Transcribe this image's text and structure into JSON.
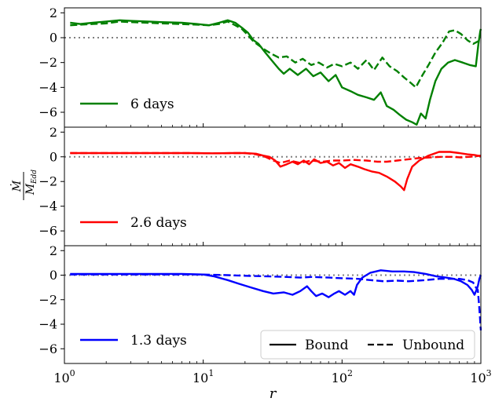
{
  "chart_data": {
    "type": "line",
    "xlabel": "r",
    "ylabel_parts": {
      "numerator": "Ṁ",
      "denominator": "M",
      "denominator_sub": "Edd"
    },
    "xscale": "log",
    "xlim": [
      1,
      1000
    ],
    "x_ticks": [
      {
        "value": 1,
        "base": "10",
        "exp": "0"
      },
      {
        "value": 10,
        "base": "10",
        "exp": "1"
      },
      {
        "value": 100,
        "base": "10",
        "exp": "2"
      },
      {
        "value": 1000,
        "base": "10",
        "exp": "3"
      }
    ],
    "y_ticks": [
      {
        "value": 2,
        "label": "2"
      },
      {
        "value": 0,
        "label": "0"
      },
      {
        "value": -2,
        "label": "−2"
      },
      {
        "value": -4,
        "label": "−4"
      },
      {
        "value": -6,
        "label": "−6"
      }
    ],
    "style_legend": {
      "solid": "Bound",
      "dashed": "Unbound",
      "placement": "lower right of bottom panel"
    },
    "panels": [
      {
        "label": "6 days",
        "color": "#008000",
        "ylim": [
          -7.2,
          2.4
        ],
        "bound": [
          [
            1.1,
            1.2
          ],
          [
            1.3,
            1.1
          ],
          [
            1.6,
            1.2
          ],
          [
            2,
            1.3
          ],
          [
            2.5,
            1.4
          ],
          [
            3,
            1.35
          ],
          [
            4,
            1.3
          ],
          [
            5,
            1.25
          ],
          [
            7,
            1.2
          ],
          [
            9,
            1.1
          ],
          [
            11,
            1.0
          ],
          [
            13,
            1.2
          ],
          [
            15,
            1.4
          ],
          [
            17,
            1.2
          ],
          [
            19,
            0.8
          ],
          [
            21,
            0.4
          ],
          [
            23,
            -0.2
          ],
          [
            25,
            -0.5
          ],
          [
            28,
            -1.2
          ],
          [
            31,
            -1.8
          ],
          [
            35,
            -2.5
          ],
          [
            38,
            -2.9
          ],
          [
            42,
            -2.5
          ],
          [
            48,
            -3.0
          ],
          [
            55,
            -2.5
          ],
          [
            62,
            -3.1
          ],
          [
            70,
            -2.8
          ],
          [
            80,
            -3.5
          ],
          [
            90,
            -3.0
          ],
          [
            100,
            -4.0
          ],
          [
            115,
            -4.3
          ],
          [
            130,
            -4.6
          ],
          [
            150,
            -4.8
          ],
          [
            170,
            -5.0
          ],
          [
            190,
            -4.4
          ],
          [
            210,
            -5.5
          ],
          [
            235,
            -5.8
          ],
          [
            260,
            -6.2
          ],
          [
            290,
            -6.6
          ],
          [
            320,
            -6.8
          ],
          [
            345,
            -7.0
          ],
          [
            370,
            -6.1
          ],
          [
            400,
            -6.5
          ],
          [
            430,
            -5.0
          ],
          [
            470,
            -3.5
          ],
          [
            520,
            -2.5
          ],
          [
            580,
            -2.0
          ],
          [
            650,
            -1.8
          ],
          [
            740,
            -2.0
          ],
          [
            830,
            -2.2
          ],
          [
            920,
            -2.3
          ],
          [
            960,
            -0.5
          ],
          [
            990,
            0.5
          ],
          [
            1000,
            0.7
          ]
        ],
        "unbound": [
          [
            1.1,
            1.0
          ],
          [
            1.3,
            1.05
          ],
          [
            1.6,
            1.1
          ],
          [
            2,
            1.15
          ],
          [
            2.5,
            1.3
          ],
          [
            3,
            1.25
          ],
          [
            4,
            1.2
          ],
          [
            5,
            1.15
          ],
          [
            7,
            1.1
          ],
          [
            9,
            1.05
          ],
          [
            11,
            1.0
          ],
          [
            13,
            1.1
          ],
          [
            15,
            1.3
          ],
          [
            17,
            1.0
          ],
          [
            19,
            0.7
          ],
          [
            21,
            0.2
          ],
          [
            23,
            -0.3
          ],
          [
            25,
            -0.6
          ],
          [
            28,
            -1.0
          ],
          [
            31,
            -1.3
          ],
          [
            35,
            -1.6
          ],
          [
            40,
            -1.5
          ],
          [
            46,
            -2.0
          ],
          [
            52,
            -1.7
          ],
          [
            60,
            -2.2
          ],
          [
            68,
            -2.0
          ],
          [
            78,
            -2.4
          ],
          [
            88,
            -2.1
          ],
          [
            100,
            -2.3
          ],
          [
            115,
            -2.0
          ],
          [
            130,
            -2.5
          ],
          [
            150,
            -1.8
          ],
          [
            170,
            -2.6
          ],
          [
            195,
            -1.6
          ],
          [
            220,
            -2.3
          ],
          [
            250,
            -2.7
          ],
          [
            280,
            -3.2
          ],
          [
            310,
            -3.6
          ],
          [
            340,
            -4.0
          ],
          [
            380,
            -3.0
          ],
          [
            420,
            -2.2
          ],
          [
            470,
            -1.2
          ],
          [
            530,
            -0.4
          ],
          [
            590,
            0.5
          ],
          [
            650,
            0.6
          ],
          [
            720,
            0.3
          ],
          [
            800,
            -0.2
          ],
          [
            880,
            -0.5
          ],
          [
            950,
            -0.3
          ],
          [
            1000,
            -0.2
          ]
        ]
      },
      {
        "label": "2.6 days",
        "color": "#ff0000",
        "ylim": [
          -7.2,
          2.4
        ],
        "bound": [
          [
            1.1,
            0.3
          ],
          [
            2,
            0.3
          ],
          [
            4,
            0.3
          ],
          [
            8,
            0.3
          ],
          [
            12,
            0.28
          ],
          [
            16,
            0.3
          ],
          [
            20,
            0.3
          ],
          [
            24,
            0.25
          ],
          [
            27,
            0.1
          ],
          [
            30,
            0.0
          ],
          [
            33,
            -0.3
          ],
          [
            36,
            -0.8
          ],
          [
            40,
            -0.6
          ],
          [
            44,
            -0.4
          ],
          [
            48,
            -0.6
          ],
          [
            53,
            -0.3
          ],
          [
            58,
            -0.6
          ],
          [
            63,
            -0.2
          ],
          [
            70,
            -0.5
          ],
          [
            78,
            -0.4
          ],
          [
            86,
            -0.7
          ],
          [
            95,
            -0.5
          ],
          [
            105,
            -0.9
          ],
          [
            115,
            -0.6
          ],
          [
            130,
            -0.8
          ],
          [
            145,
            -1.0
          ],
          [
            165,
            -1.2
          ],
          [
            185,
            -1.3
          ],
          [
            210,
            -1.6
          ],
          [
            240,
            -2.0
          ],
          [
            265,
            -2.4
          ],
          [
            280,
            -2.7
          ],
          [
            295,
            -1.8
          ],
          [
            320,
            -0.8
          ],
          [
            360,
            -0.3
          ],
          [
            420,
            0.1
          ],
          [
            500,
            0.4
          ],
          [
            600,
            0.4
          ],
          [
            700,
            0.3
          ],
          [
            800,
            0.2
          ],
          [
            900,
            0.15
          ],
          [
            1000,
            0.05
          ]
        ],
        "unbound": [
          [
            1.1,
            0.3
          ],
          [
            2,
            0.3
          ],
          [
            4,
            0.3
          ],
          [
            8,
            0.3
          ],
          [
            12,
            0.28
          ],
          [
            16,
            0.3
          ],
          [
            20,
            0.3
          ],
          [
            24,
            0.2
          ],
          [
            28,
            0.0
          ],
          [
            32,
            -0.3
          ],
          [
            36,
            -0.5
          ],
          [
            42,
            -0.3
          ],
          [
            50,
            -0.5
          ],
          [
            60,
            -0.3
          ],
          [
            72,
            -0.4
          ],
          [
            85,
            -0.3
          ],
          [
            100,
            -0.3
          ],
          [
            120,
            -0.25
          ],
          [
            150,
            -0.3
          ],
          [
            180,
            -0.4
          ],
          [
            210,
            -0.4
          ],
          [
            250,
            -0.3
          ],
          [
            300,
            -0.2
          ],
          [
            360,
            -0.1
          ],
          [
            430,
            -0.05
          ],
          [
            520,
            0.0
          ],
          [
            620,
            0.0
          ],
          [
            720,
            -0.05
          ],
          [
            820,
            0.0
          ],
          [
            920,
            0.05
          ],
          [
            1000,
            0.1
          ]
        ]
      },
      {
        "label": "1.3 days",
        "color": "#0000ff",
        "ylim": [
          -7.2,
          2.4
        ],
        "bound": [
          [
            1.1,
            0.1
          ],
          [
            2,
            0.1
          ],
          [
            4,
            0.1
          ],
          [
            7,
            0.1
          ],
          [
            10,
            0.05
          ],
          [
            12,
            -0.1
          ],
          [
            15,
            -0.4
          ],
          [
            18,
            -0.7
          ],
          [
            22,
            -1.0
          ],
          [
            27,
            -1.3
          ],
          [
            32,
            -1.5
          ],
          [
            38,
            -1.4
          ],
          [
            44,
            -1.6
          ],
          [
            50,
            -1.3
          ],
          [
            56,
            -0.9
          ],
          [
            60,
            -1.3
          ],
          [
            65,
            -1.7
          ],
          [
            72,
            -1.5
          ],
          [
            80,
            -1.8
          ],
          [
            88,
            -1.5
          ],
          [
            95,
            -1.3
          ],
          [
            105,
            -1.6
          ],
          [
            115,
            -1.3
          ],
          [
            122,
            -1.6
          ],
          [
            128,
            -0.8
          ],
          [
            140,
            -0.2
          ],
          [
            160,
            0.2
          ],
          [
            190,
            0.4
          ],
          [
            230,
            0.3
          ],
          [
            280,
            0.3
          ],
          [
            330,
            0.25
          ],
          [
            400,
            0.1
          ],
          [
            480,
            -0.1
          ],
          [
            560,
            -0.2
          ],
          [
            640,
            -0.3
          ],
          [
            720,
            -0.5
          ],
          [
            800,
            -0.8
          ],
          [
            860,
            -1.2
          ],
          [
            900,
            -1.6
          ],
          [
            930,
            -1.2
          ],
          [
            950,
            -0.9
          ],
          [
            975,
            -0.3
          ],
          [
            1000,
            0.0
          ]
        ],
        "unbound": [
          [
            1.1,
            0.05
          ],
          [
            2,
            0.05
          ],
          [
            4,
            0.05
          ],
          [
            7,
            0.05
          ],
          [
            10,
            0.05
          ],
          [
            15,
            0.0
          ],
          [
            20,
            -0.05
          ],
          [
            30,
            -0.1
          ],
          [
            40,
            -0.15
          ],
          [
            50,
            -0.2
          ],
          [
            60,
            -0.15
          ],
          [
            80,
            -0.2
          ],
          [
            100,
            -0.25
          ],
          [
            130,
            -0.3
          ],
          [
            160,
            -0.4
          ],
          [
            200,
            -0.5
          ],
          [
            250,
            -0.45
          ],
          [
            300,
            -0.5
          ],
          [
            400,
            -0.4
          ],
          [
            500,
            -0.3
          ],
          [
            600,
            -0.3
          ],
          [
            700,
            -0.3
          ],
          [
            800,
            -0.4
          ],
          [
            880,
            -0.6
          ],
          [
            920,
            -1.0
          ],
          [
            950,
            -1.2
          ],
          [
            970,
            -2.4
          ],
          [
            985,
            -3.4
          ],
          [
            995,
            -4.2
          ],
          [
            1000,
            -4.5
          ]
        ]
      }
    ]
  }
}
